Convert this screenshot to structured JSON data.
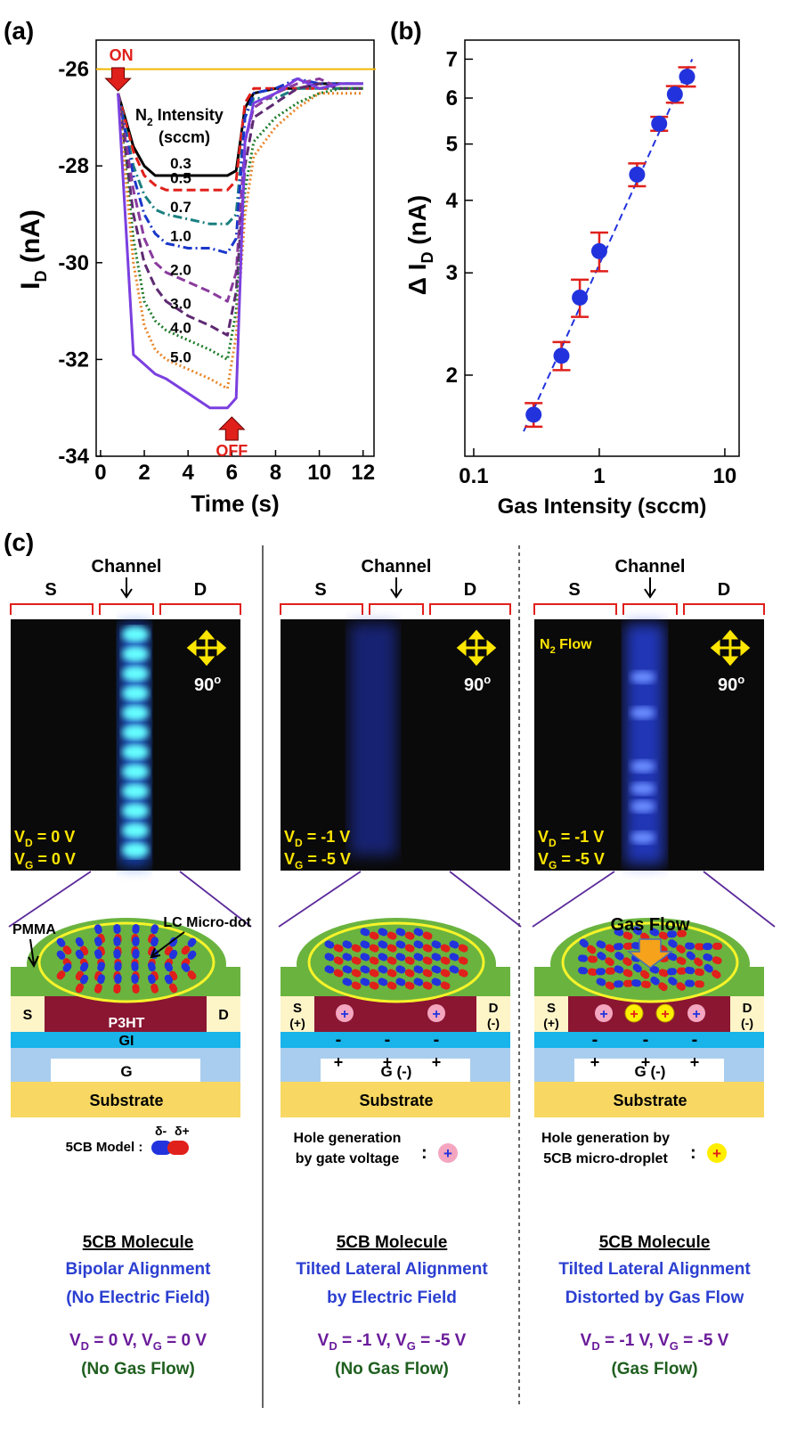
{
  "figure_labels": {
    "a": "(a)",
    "b": "(b)",
    "c": "(c)"
  },
  "chart_data": [
    {
      "type": "line",
      "x_label": "Time (s)",
      "y_label": [
        "I",
        "D",
        " (nA)"
      ],
      "x": [
        0.8,
        1.5,
        2,
        2.5,
        3,
        4,
        5,
        5.8,
        6.2,
        6.6,
        7,
        8,
        9,
        10,
        11,
        12
      ],
      "xlim": [
        -0.2,
        12.5
      ],
      "xticks": [
        0,
        2,
        4,
        6,
        8,
        10,
        12
      ],
      "ylim": [
        -34,
        -25.4
      ],
      "yticks": [
        -34,
        -32,
        -30,
        -28,
        -26
      ],
      "reference_line": {
        "value": -26,
        "color": "#f2b705"
      },
      "annotations": {
        "on": "ON",
        "off": "OFF",
        "legend_title": [
          "N",
          "2",
          " Intensity"
        ],
        "legend_unit": "(sccm)"
      },
      "series": [
        {
          "name": "0.3",
          "color": "#000000",
          "dash": "solid",
          "values": [
            -26.5,
            -27.6,
            -28.0,
            -28.2,
            -28.2,
            -28.2,
            -28.2,
            -28.2,
            -28.1,
            -26.8,
            -26.5,
            -26.4,
            -26.4,
            -26.3,
            -26.3,
            -26.3
          ]
        },
        {
          "name": "0.5",
          "color": "#e0201b",
          "dash": "dashed",
          "values": [
            -26.5,
            -27.7,
            -28.2,
            -28.4,
            -28.5,
            -28.5,
            -28.5,
            -28.5,
            -28.3,
            -26.7,
            -26.4,
            -26.4,
            -26.4,
            -26.4,
            -26.4,
            -26.4
          ]
        },
        {
          "name": "0.7",
          "color": "#1b7f7f",
          "dash": "dashdot",
          "values": [
            -26.5,
            -28.0,
            -28.6,
            -28.9,
            -29.0,
            -29.1,
            -29.2,
            -29.2,
            -29.0,
            -27.0,
            -26.6,
            -26.6,
            -26.4,
            -26.4,
            -26.4,
            -26.4
          ]
        },
        {
          "name": "1.0",
          "color": "#1a37c9",
          "dash": "dashdot",
          "values": [
            -26.5,
            -28.2,
            -29.0,
            -29.4,
            -29.6,
            -29.7,
            -29.7,
            -29.8,
            -29.5,
            -27.0,
            -26.5,
            -26.4,
            -26.2,
            -26.3,
            -26.3,
            -26.3
          ]
        },
        {
          "name": "2.0",
          "color": "#8a3b9e",
          "dash": "dashed",
          "values": [
            -26.5,
            -28.5,
            -29.5,
            -30.0,
            -30.2,
            -30.4,
            -30.6,
            -30.8,
            -30.2,
            -27.5,
            -26.8,
            -26.5,
            -26.3,
            -26.2,
            -26.4,
            -26.4
          ]
        },
        {
          "name": "3.0",
          "color": "#5e2a72",
          "dash": "dashed",
          "values": [
            -26.5,
            -29.0,
            -30.0,
            -30.5,
            -30.8,
            -31.1,
            -31.3,
            -31.5,
            -30.6,
            -28.0,
            -27.0,
            -26.7,
            -26.4,
            -26.3,
            -26.4,
            -26.4
          ]
        },
        {
          "name": "4.0",
          "color": "#1e7d2b",
          "dash": "dotted",
          "values": [
            -26.5,
            -29.5,
            -30.8,
            -31.2,
            -31.4,
            -31.6,
            -31.8,
            -32.0,
            -31.0,
            -28.5,
            -27.5,
            -27.0,
            -26.7,
            -26.5,
            -26.4,
            -26.4
          ]
        },
        {
          "name": "5.0",
          "color": "#e8862a",
          "dash": "dotted",
          "values": [
            -26.5,
            -30.0,
            -31.3,
            -31.8,
            -32.0,
            -32.2,
            -32.4,
            -32.6,
            -31.5,
            -29.0,
            -27.8,
            -27.2,
            -26.8,
            -26.5,
            -26.5,
            -26.5
          ]
        },
        {
          "name": null,
          "color": "#7b3fe0",
          "dash": "solid",
          "values": [
            -26.5,
            -31.9,
            -32.1,
            -32.3,
            -32.4,
            -32.7,
            -33.0,
            -33.0,
            -32.8,
            -27.5,
            -26.7,
            -26.5,
            -26.2,
            -26.4,
            -26.3,
            -26.3
          ]
        }
      ]
    },
    {
      "type": "scatter",
      "x_label": "Gas Intensity (sccm)",
      "y_label": [
        "Δ I",
        "D",
        " (nA)"
      ],
      "log_x": true,
      "log_y": true,
      "x": [
        0.3,
        0.5,
        0.7,
        1,
        2,
        3,
        4,
        5
      ],
      "values": [
        1.71,
        2.16,
        2.72,
        3.27,
        4.43,
        5.42,
        6.09,
        6.53
      ],
      "errors": [
        0.08,
        0.12,
        0.2,
        0.25,
        0.2,
        0.15,
        0.2,
        0.25
      ],
      "color": "#2233dd",
      "error_color": "#e0201b",
      "xlim": [
        0.085,
        13
      ],
      "xticks": [
        0.1,
        1,
        10
      ],
      "ylim": [
        1.45,
        7.55
      ],
      "yticks": [
        2,
        3,
        4,
        5,
        6,
        7
      ],
      "fit": {
        "x": [
          0.25,
          5.5
        ],
        "y": [
          1.6,
          7.0
        ],
        "color": "#2233dd"
      }
    }
  ],
  "panel_c": {
    "columns": [
      {
        "channel": "Channel",
        "source": "S",
        "drain": "D",
        "angle": [
          "90",
          "o"
        ],
        "image_labels": {
          "vd": [
            "V",
            "D",
            " = 0 V"
          ],
          "vg": [
            "V",
            "G",
            " = 0 V"
          ]
        },
        "diagram": {
          "pmma": "PMMA",
          "lc_micro_dot": "LC Micro-dot",
          "source": "S",
          "drain": "D",
          "p3ht": "P3HT",
          "gi": "GI",
          "gate": "G",
          "substrate": "Substrate",
          "model": "5CB Model :",
          "delta_minus": "δ-",
          "delta_plus": "δ+"
        },
        "caption": {
          "title": "5CB Molecule",
          "lines": [
            "Bipolar Alignment",
            "(No Electric Field)"
          ],
          "condition": [
            "V",
            "D",
            " = 0 V, V",
            "G",
            " = 0 V"
          ],
          "note": "(No Gas Flow)"
        }
      },
      {
        "channel": "Channel",
        "source": "S",
        "drain": "D",
        "angle": [
          "90",
          "o"
        ],
        "image_labels": {
          "vd": [
            "V",
            "D",
            " = -1 V"
          ],
          "vg": [
            "V",
            "G",
            " = -5 V"
          ]
        },
        "diagram": {
          "source": "S",
          "source_sign": "(+)",
          "drain": "D",
          "drain_sign": "(-)",
          "hole": "+",
          "minus": "-",
          "plus": "+",
          "gate": "G (-)",
          "substrate": "Substrate",
          "legend": [
            "Hole generation",
            "by gate voltage"
          ],
          "legend_sep": ":"
        },
        "caption": {
          "title": "5CB Molecule",
          "lines": [
            "Tilted Lateral Alignment",
            "by Electric Field"
          ],
          "condition": [
            "V",
            "D",
            " = -1 V, V",
            "G",
            " = -5 V"
          ],
          "note": "(No Gas Flow)"
        }
      },
      {
        "channel": "Channel",
        "source": "S",
        "drain": "D",
        "angle": [
          "90",
          "o"
        ],
        "image_labels": {
          "flow": [
            "N",
            "2",
            " Flow"
          ],
          "vd": [
            "V",
            "D",
            " = -1 V"
          ],
          "vg": [
            "V",
            "G",
            " = -5 V"
          ]
        },
        "diagram": {
          "gas_flow": "Gas Flow",
          "source": "S",
          "source_sign": "(+)",
          "drain": "D",
          "drain_sign": "(-)",
          "hole": "+",
          "droplet_hole": "+",
          "minus": "-",
          "plus": "+",
          "gate": "G (-)",
          "substrate": "Substrate",
          "legend": [
            "Hole generation by",
            "5CB micro-droplet"
          ],
          "legend_sep": ":"
        },
        "caption": {
          "title": "5CB Molecule",
          "lines": [
            "Tilted Lateral Alignment",
            "Distorted by Gas Flow"
          ],
          "condition": [
            "V",
            "D",
            " = -1 V, V",
            "G",
            " = -5 V"
          ],
          "note": "(Gas Flow)"
        }
      }
    ]
  }
}
